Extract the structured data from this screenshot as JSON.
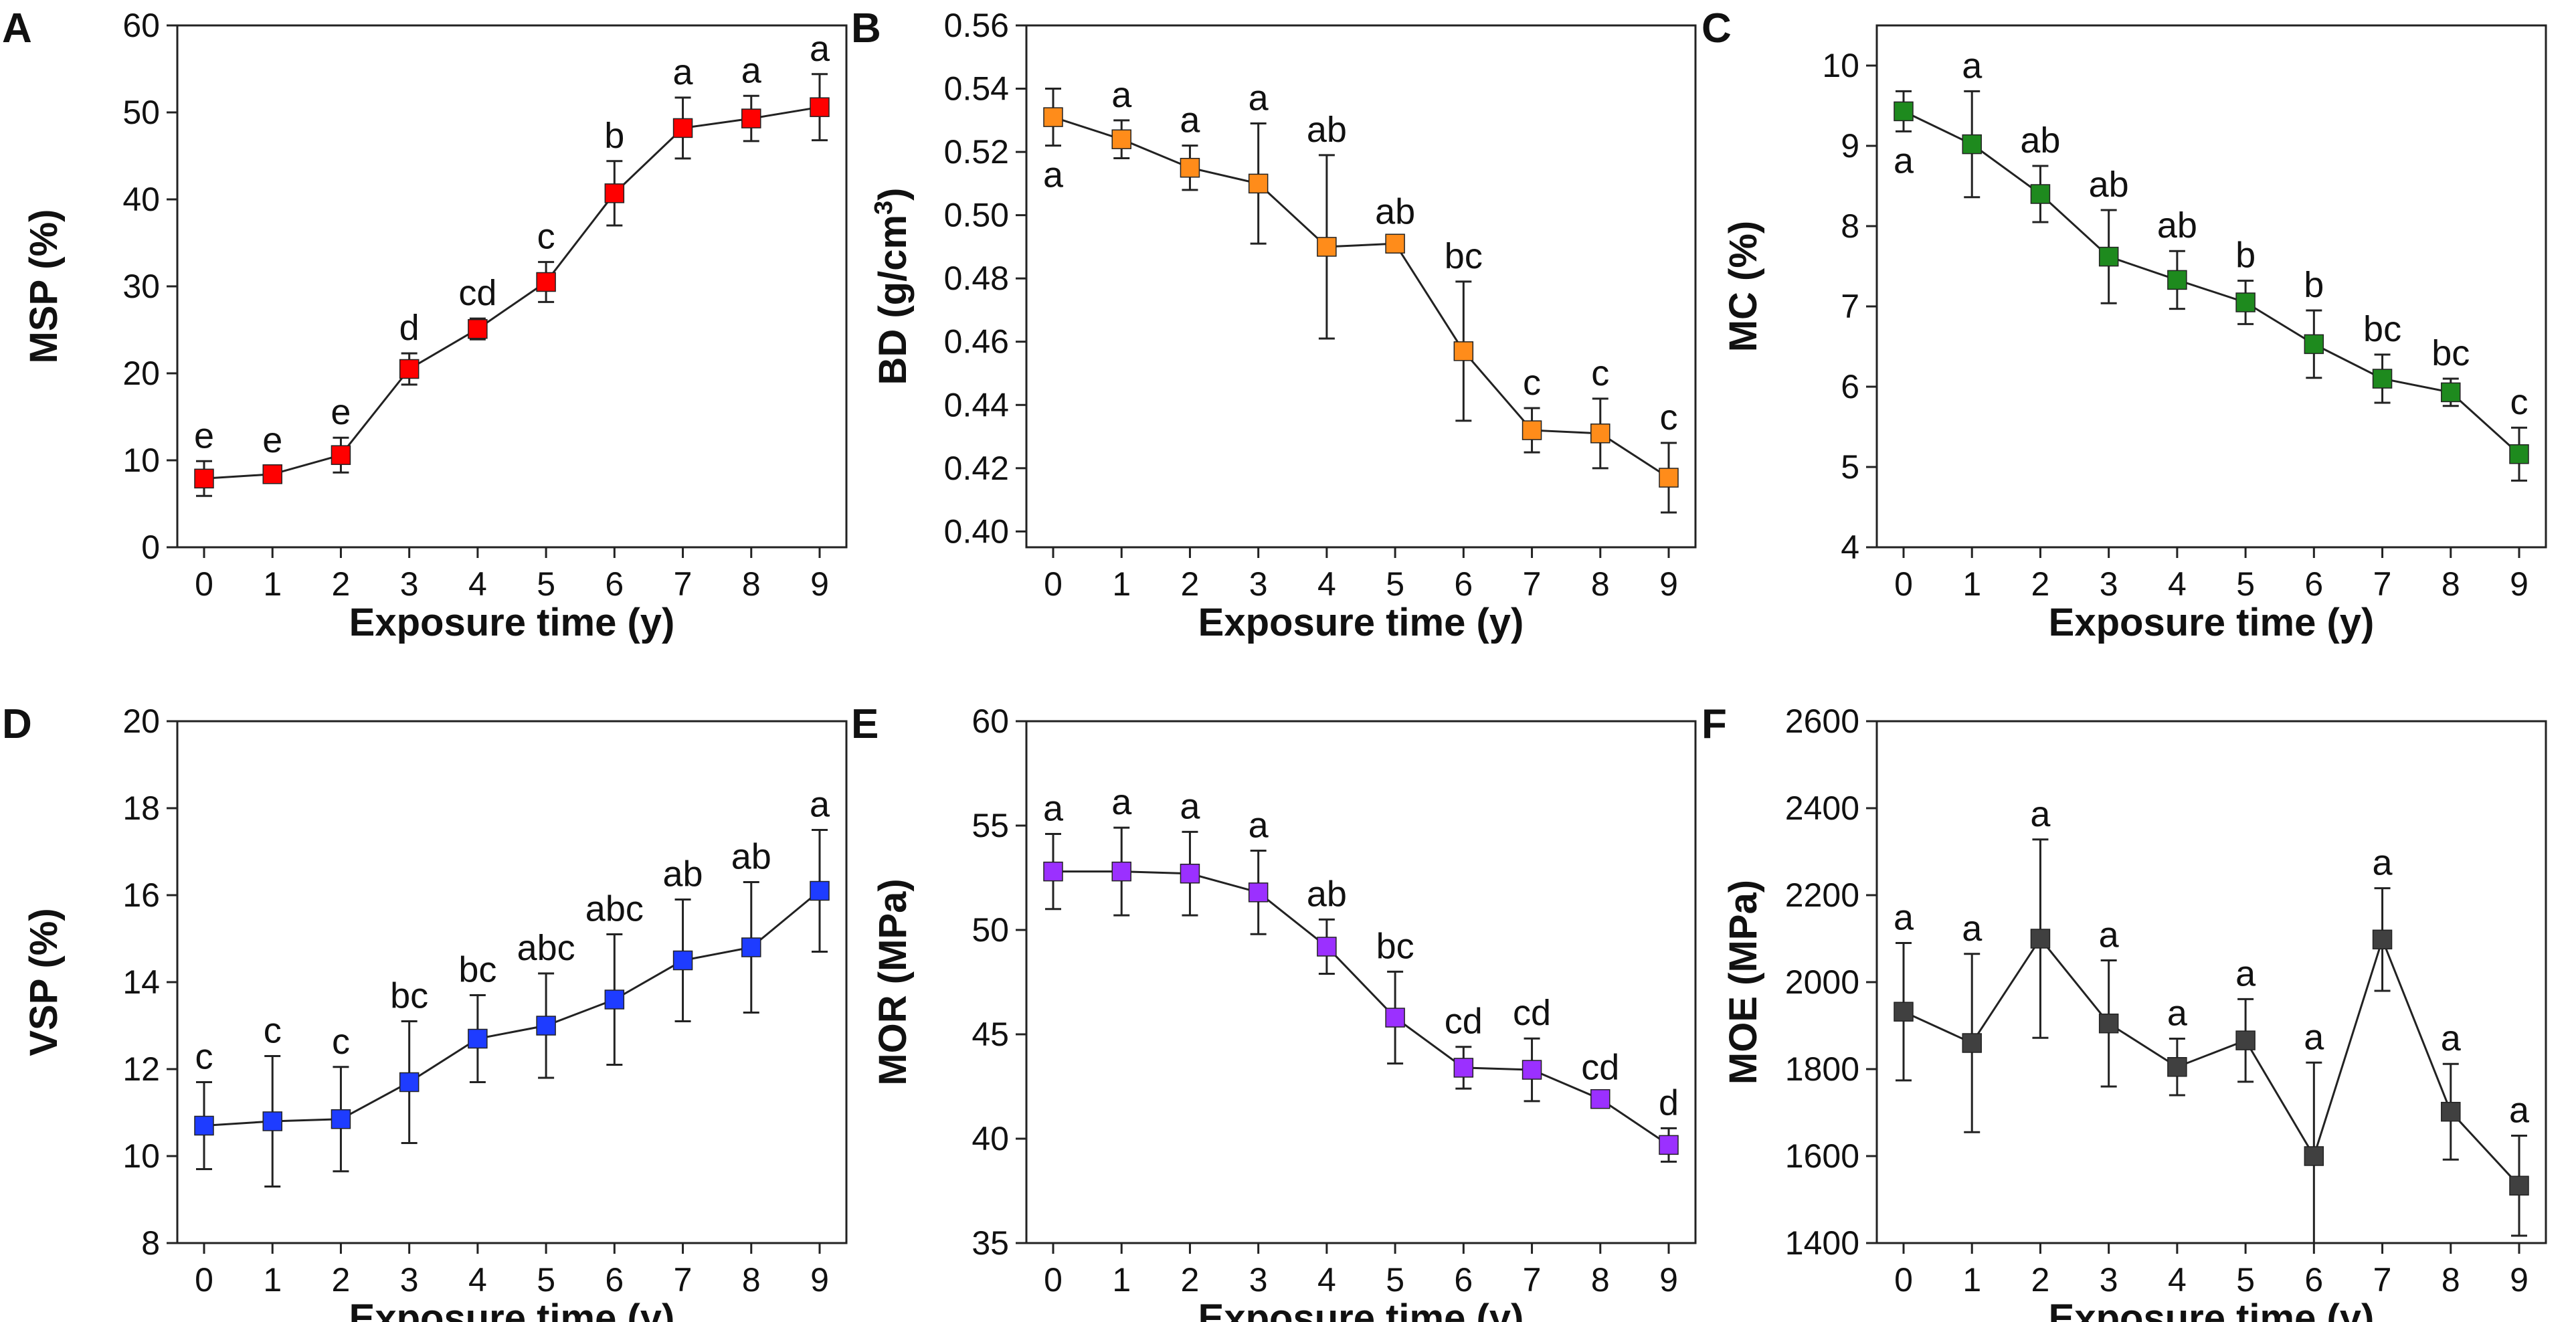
{
  "chart_data": [
    {
      "id": "A",
      "panel": "A",
      "type": "line",
      "color": "#ff0000",
      "xlabel": "Exposure time (y)",
      "ylabel": "MSP (%)",
      "ylim": [
        0,
        60
      ],
      "yticks": [
        "0",
        "10",
        "20",
        "30",
        "40",
        "50",
        "60"
      ],
      "x": [
        0,
        1,
        2,
        3,
        4,
        5,
        6,
        7,
        8,
        9
      ],
      "xticks": [
        "0",
        "1",
        "2",
        "3",
        "4",
        "5",
        "6",
        "7",
        "8",
        "9"
      ],
      "values": [
        7.9,
        8.4,
        10.6,
        20.5,
        25.1,
        30.5,
        40.7,
        48.2,
        49.3,
        50.6
      ],
      "errors": [
        2.0,
        1.0,
        2.0,
        1.8,
        1.2,
        2.3,
        3.7,
        3.5,
        2.6,
        3.8
      ],
      "labels": [
        "e",
        "e",
        "e",
        "d",
        "cd",
        "c",
        "b",
        "a",
        "a",
        "a"
      ]
    },
    {
      "id": "B",
      "panel": "B",
      "type": "line",
      "color": "#ff8c1a",
      "xlabel": "Exposure time (y)",
      "ylabel": "BD (g/cm",
      "ylabel_sup": "3",
      "ylabel_end": ")",
      "ylim": [
        0.395,
        0.56
      ],
      "yticks": [
        "0.40",
        "0.42",
        "0.44",
        "0.46",
        "0.48",
        "0.50",
        "0.52",
        "0.54",
        "0.56"
      ],
      "x": [
        0,
        1,
        2,
        3,
        4,
        5,
        6,
        7,
        8,
        9
      ],
      "xticks": [
        "0",
        "1",
        "2",
        "3",
        "4",
        "5",
        "6",
        "7",
        "8",
        "9"
      ],
      "values": [
        0.531,
        0.524,
        0.515,
        0.51,
        0.49,
        0.491,
        0.457,
        0.432,
        0.431,
        0.417
      ],
      "errors": [
        0.009,
        0.006,
        0.007,
        0.019,
        0.029,
        0.002,
        0.022,
        0.007,
        0.011,
        0.011
      ],
      "labels": [
        "a",
        "a",
        "a",
        "a",
        "ab",
        "ab",
        "bc",
        "c",
        "c",
        "c"
      ],
      "label_below": [
        0
      ]
    },
    {
      "id": "C",
      "panel": "C",
      "type": "line",
      "color": "#1e8a1e",
      "xlabel": "Exposure time (y)",
      "ylabel": "MC (%)",
      "ylim": [
        4,
        10.5
      ],
      "yticks": [
        "4",
        "5",
        "6",
        "7",
        "8",
        "9",
        "10"
      ],
      "x": [
        0,
        1,
        2,
        3,
        4,
        5,
        6,
        7,
        8,
        9
      ],
      "xticks": [
        "0",
        "1",
        "2",
        "3",
        "4",
        "5",
        "6",
        "7",
        "8",
        "9"
      ],
      "values": [
        9.43,
        9.02,
        8.4,
        7.62,
        7.33,
        7.05,
        6.53,
        6.1,
        5.93,
        5.16
      ],
      "errors": [
        0.25,
        0.66,
        0.35,
        0.58,
        0.36,
        0.27,
        0.42,
        0.3,
        0.17,
        0.33
      ],
      "labels": [
        "a",
        "a",
        "ab",
        "ab",
        "ab",
        "b",
        "b",
        "bc",
        "bc",
        "c"
      ],
      "label_below": [
        0
      ]
    },
    {
      "id": "D",
      "panel": "D",
      "type": "line",
      "color": "#1e3cff",
      "xlabel": "Exposure time (y)",
      "ylabel": "VSP (%)",
      "ylim": [
        8,
        20
      ],
      "yticks": [
        "8",
        "10",
        "12",
        "14",
        "16",
        "18",
        "20"
      ],
      "x": [
        0,
        1,
        2,
        3,
        4,
        5,
        6,
        7,
        8,
        9
      ],
      "xticks": [
        "0",
        "1",
        "2",
        "3",
        "4",
        "5",
        "6",
        "7",
        "8",
        "9"
      ],
      "values": [
        10.7,
        10.8,
        10.85,
        11.7,
        12.7,
        13.0,
        13.6,
        14.5,
        14.8,
        16.1
      ],
      "errors": [
        1.0,
        1.5,
        1.2,
        1.4,
        1.0,
        1.2,
        1.5,
        1.4,
        1.5,
        1.4
      ],
      "labels": [
        "c",
        "c",
        "c",
        "bc",
        "bc",
        "abc",
        "abc",
        "ab",
        "ab",
        "a"
      ]
    },
    {
      "id": "E",
      "panel": "E",
      "type": "line",
      "color": "#9b30ff",
      "xlabel": "Exposure time (y)",
      "ylabel": "MOR (MPa)",
      "ylim": [
        35,
        60
      ],
      "yticks": [
        "35",
        "40",
        "45",
        "50",
        "55",
        "60"
      ],
      "x": [
        0,
        1,
        2,
        3,
        4,
        5,
        6,
        7,
        8,
        9
      ],
      "xticks": [
        "0",
        "1",
        "2",
        "3",
        "4",
        "5",
        "6",
        "7",
        "8",
        "9"
      ],
      "values": [
        52.8,
        52.8,
        52.7,
        51.8,
        49.2,
        45.8,
        43.4,
        43.3,
        41.9,
        39.7
      ],
      "errors": [
        1.8,
        2.1,
        2.0,
        2.0,
        1.3,
        2.2,
        1.0,
        1.5,
        0.3,
        0.8
      ],
      "labels": [
        "a",
        "a",
        "a",
        "a",
        "ab",
        "bc",
        "cd",
        "cd",
        "cd",
        "d"
      ]
    },
    {
      "id": "F",
      "panel": "F",
      "type": "line",
      "color": "#404040",
      "xlabel": "Exposure time (y)",
      "ylabel": "MOE (MPa)",
      "ylim": [
        1400,
        2600
      ],
      "yticks": [
        "1400",
        "1600",
        "1800",
        "2000",
        "2200",
        "2400",
        "2600"
      ],
      "x": [
        0,
        1,
        2,
        3,
        4,
        5,
        6,
        7,
        8,
        9
      ],
      "xticks": [
        "0",
        "1",
        "2",
        "3",
        "4",
        "5",
        "6",
        "7",
        "8",
        "9"
      ],
      "values": [
        1932,
        1860,
        2100,
        1905,
        1805,
        1866,
        1600,
        2098,
        1702,
        1532
      ],
      "errors": [
        158,
        205,
        228,
        145,
        65,
        95,
        215,
        118,
        110,
        115
      ],
      "labels": [
        "a",
        "a",
        "a",
        "a",
        "a",
        "a",
        "a",
        "a",
        "a",
        "a"
      ]
    }
  ]
}
